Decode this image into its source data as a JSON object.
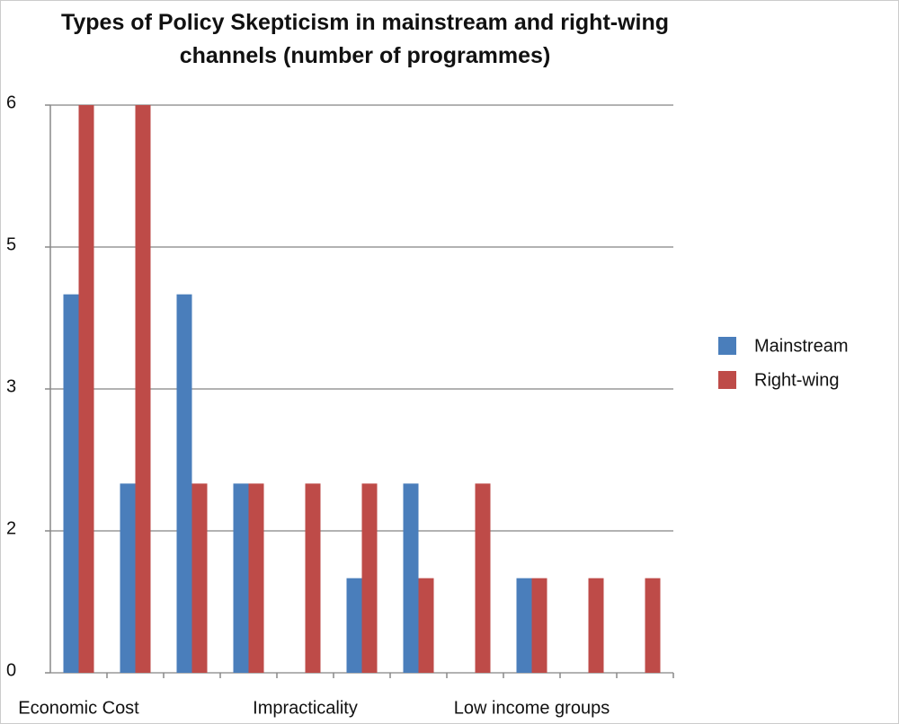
{
  "chart_data": {
    "type": "bar",
    "title": "Types of Policy Skepticism in mainstream and right-wing channels (number of programmes)",
    "categories": [
      "Economic Cost",
      null,
      null,
      null,
      "Impracticality",
      null,
      null,
      null,
      "Low income groups",
      null,
      null
    ],
    "series": [
      {
        "name": "Mainstream",
        "color": "#4a7ebb",
        "values": [
          4,
          2,
          4,
          2,
          0,
          1,
          2,
          0,
          1,
          0,
          0
        ]
      },
      {
        "name": "Right-wing",
        "color": "#be4b48",
        "values": [
          6,
          6,
          2,
          2,
          2,
          2,
          1,
          2,
          1,
          1,
          1
        ]
      }
    ],
    "ylim": [
      0,
      6
    ],
    "yticks": [
      0,
      {
        "value": 1.5,
        "label": "2"
      },
      3,
      {
        "value": 4.5,
        "label": "5"
      },
      6
    ],
    "grid": true
  }
}
